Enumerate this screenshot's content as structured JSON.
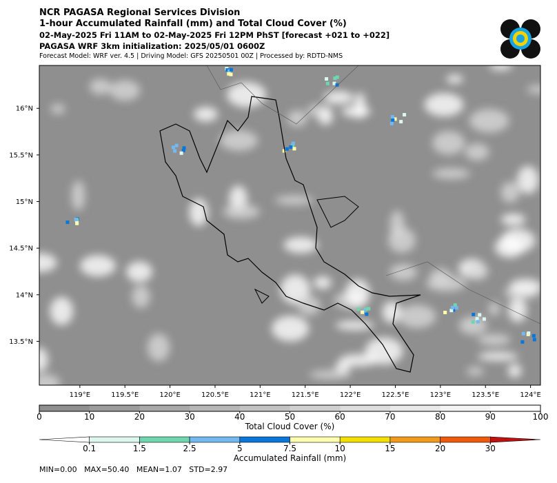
{
  "header": {
    "title": "NCR PAGASA Regional Services Division",
    "subtitle": "1-hour Accumulated Rainfall (mm) and Total Cloud Cover (%)",
    "valid_time": "02-May-2025 Fri 11AM to 02-May-2025 Fri 12PM PhST [forecast +021 to +022]",
    "init_time": "PAGASA WRF 3km initialization: 2025/05/01 0600Z",
    "model_info": "Forecast Model: WRF ver. 4.5 | Driving Model: GFS 20250501 00Z | Processed by: RDTD-NMS"
  },
  "map": {
    "lonlim": [
      118.55,
      124.11
    ],
    "latlim": [
      13.03,
      16.46
    ],
    "lon_ticks": [
      {
        "value": 119,
        "label": "119°E"
      },
      {
        "value": 119.5,
        "label": "119.5°E"
      },
      {
        "value": 120,
        "label": "120°E"
      },
      {
        "value": 120.5,
        "label": "120.5°E"
      },
      {
        "value": 121,
        "label": "121°E"
      },
      {
        "value": 121.5,
        "label": "121.5°E"
      },
      {
        "value": 122,
        "label": "122°E"
      },
      {
        "value": 122.5,
        "label": "122.5°E"
      },
      {
        "value": 123,
        "label": "123°E"
      },
      {
        "value": 123.5,
        "label": "123.5°E"
      },
      {
        "value": 124,
        "label": "124°E"
      }
    ],
    "lat_ticks": [
      {
        "value": 16,
        "label": "16°N"
      },
      {
        "value": 15.5,
        "label": "15.5°N"
      },
      {
        "value": 15,
        "label": "15°N"
      },
      {
        "value": 14.5,
        "label": "14.5°N"
      },
      {
        "value": 14,
        "label": "14°N"
      },
      {
        "value": 13.5,
        "label": "13.5°N"
      }
    ]
  },
  "cloud_cover": {
    "label": "Total Cloud Cover (%)",
    "lim": [
      0,
      100
    ],
    "ticks": [
      0,
      10,
      20,
      30,
      40,
      50,
      60,
      70,
      80,
      90,
      100
    ],
    "colors": [
      "#8f8f8f",
      "#9c9c9c",
      "#a9a9a9",
      "#b6b6b6",
      "#c3c3c3",
      "#d0d0d0",
      "#dddddd",
      "#e9e9e9",
      "#f4f4f4",
      "#ffffff"
    ]
  },
  "rainfall": {
    "label": "Accumulated Rainfall (mm)",
    "bounds": [
      0.1,
      1.5,
      2.5,
      5,
      7.5,
      10,
      15,
      20,
      30
    ],
    "colors": [
      "#ffffff",
      "#ddf7ee",
      "#6fd6ae",
      "#73b9f0",
      "#0a77d8",
      "#ffffb0",
      "#f2e000",
      "#f29a1c",
      "#ef5a0c",
      "#c01010"
    ]
  },
  "stats": "MIN=0.00   MAX=50.40   MEAN=1.07   STD=2.97"
}
